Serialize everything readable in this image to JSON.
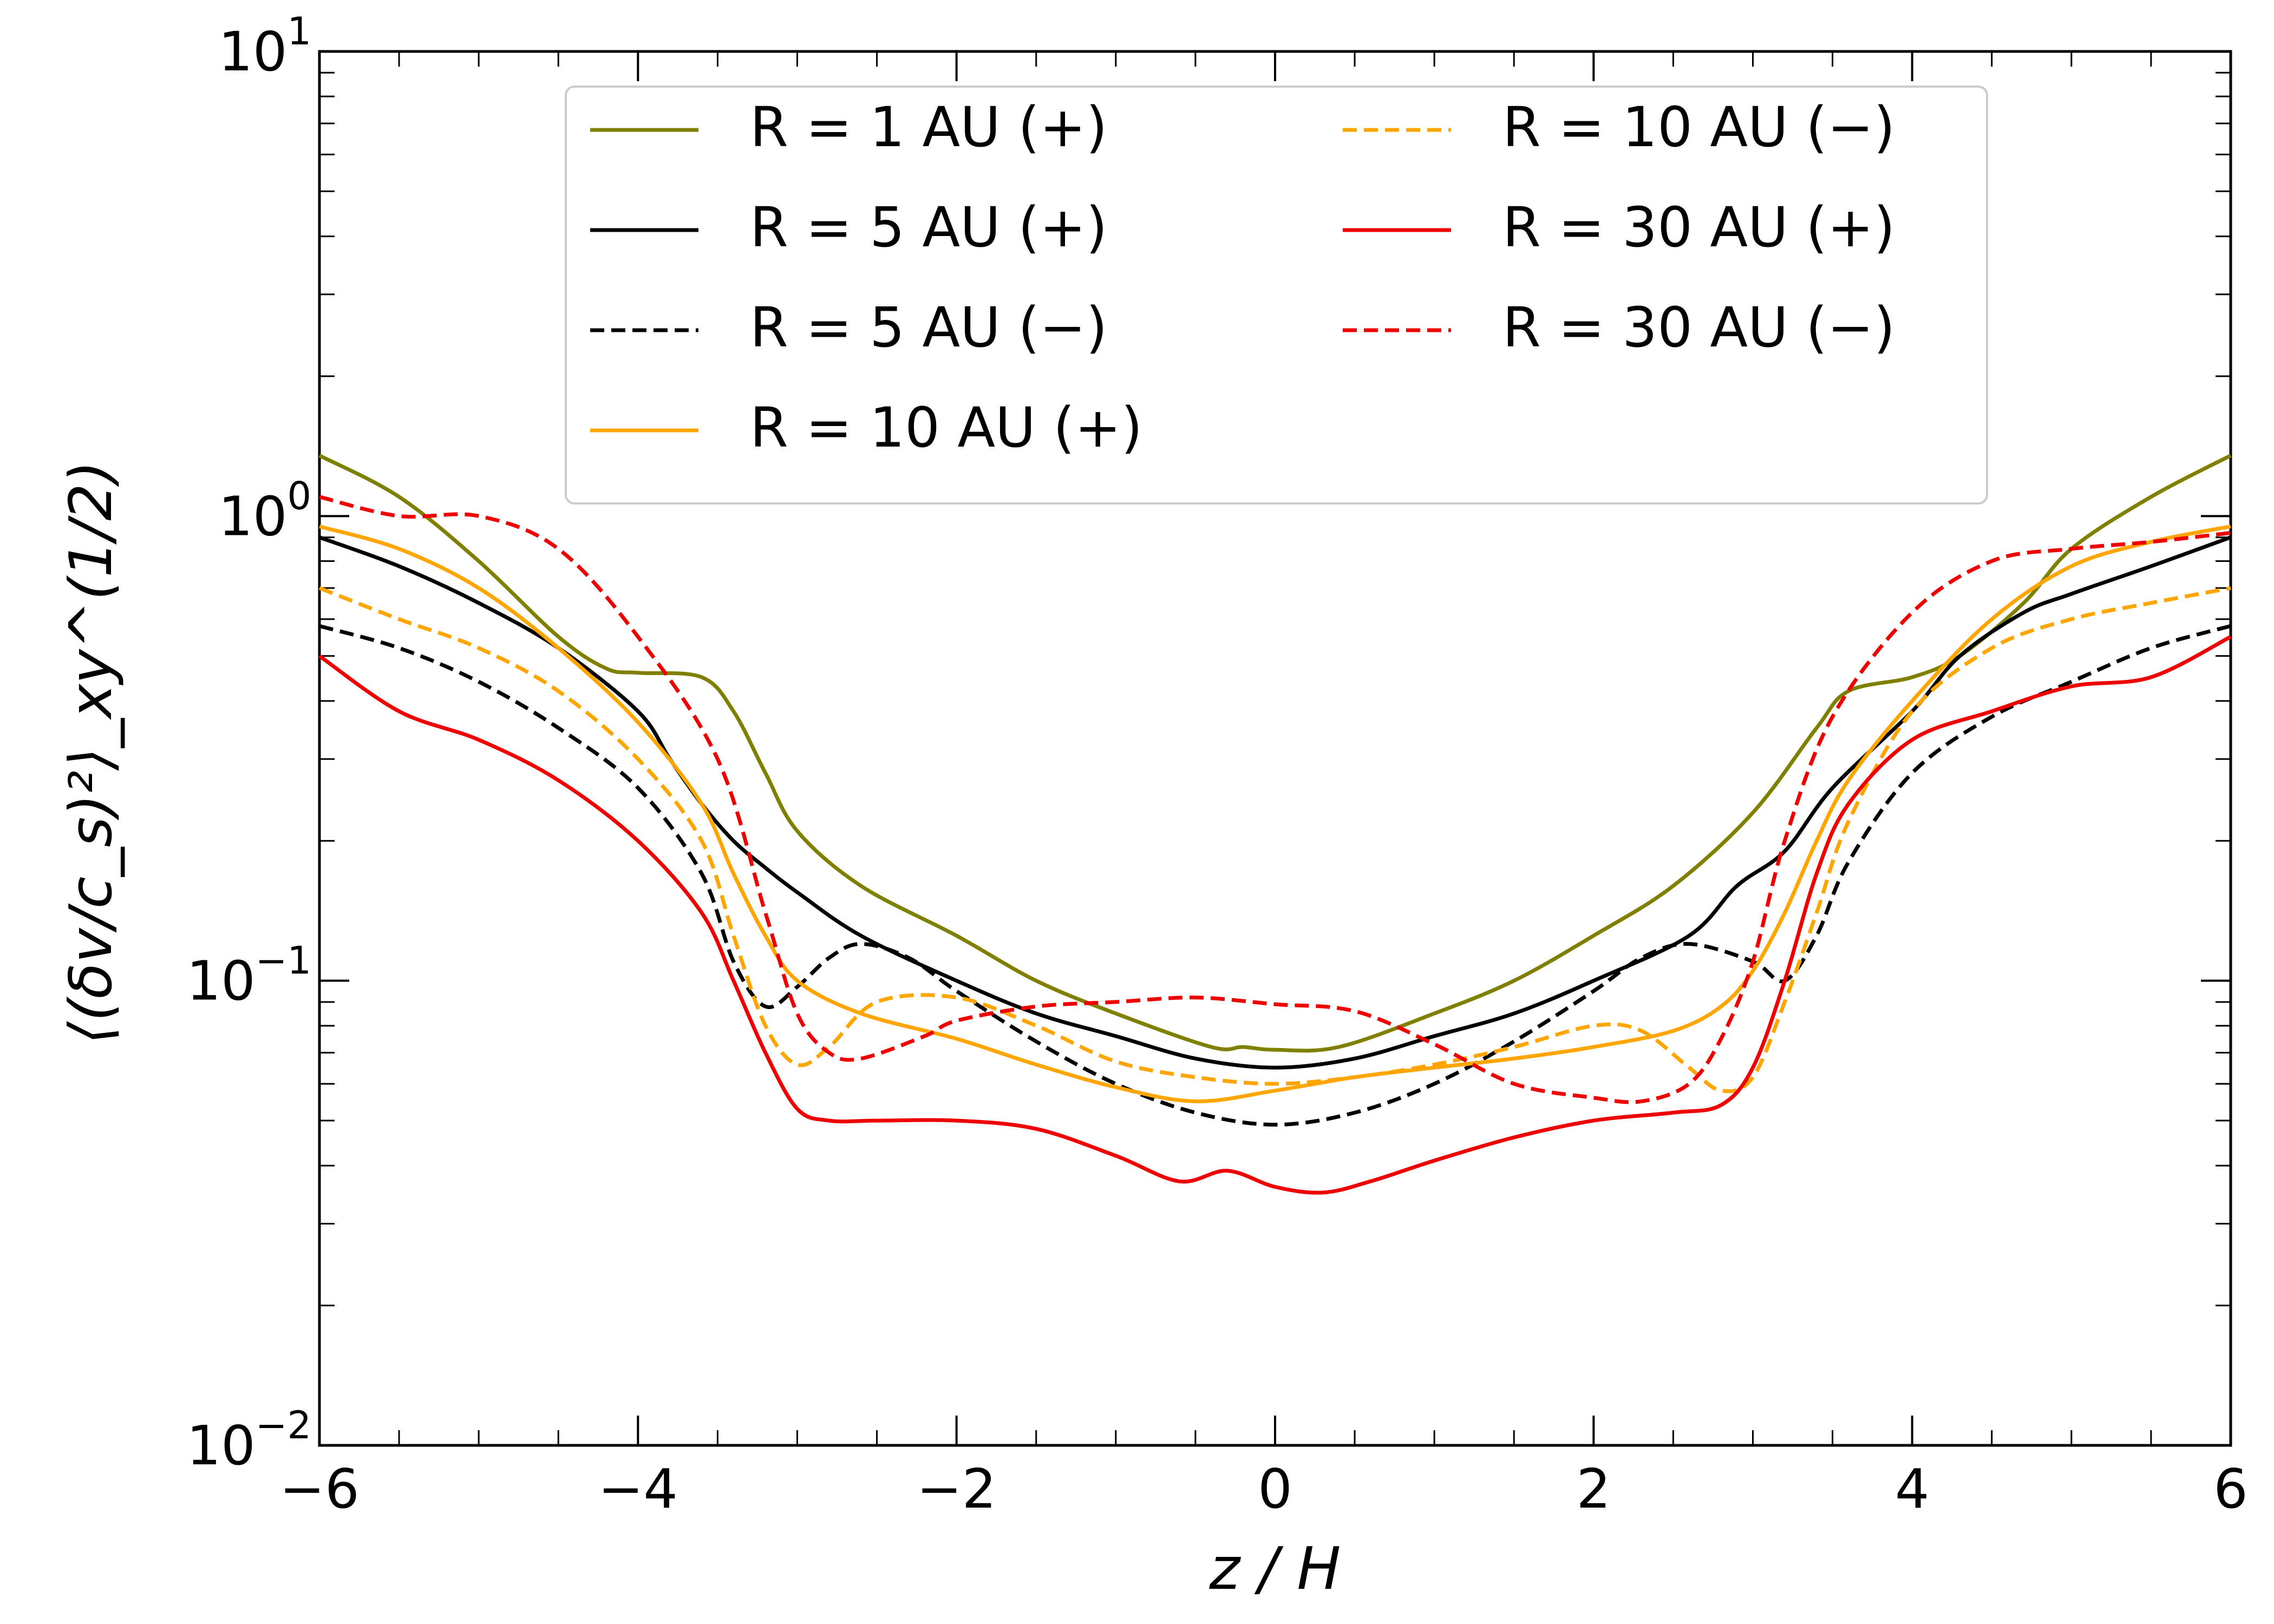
{
  "chart_data": {
    "type": "line",
    "title": "",
    "xlabel": "z / H",
    "ylabel": "⟨(δv/c_s)²⟩_xy^(1/2)",
    "xlim": [
      -6,
      6
    ],
    "ylim": [
      0.01,
      10
    ],
    "yscale": "log",
    "xticks": [
      -6,
      -4,
      -2,
      0,
      2,
      4,
      6
    ],
    "xtick_labels": [
      "−6",
      "−4",
      "−2",
      "0",
      "2",
      "4",
      "6"
    ],
    "ytick_labels": [
      {
        "base": "10",
        "exp": "−2"
      },
      {
        "base": "10",
        "exp": "−1"
      },
      {
        "base": "10",
        "exp": "0"
      },
      {
        "base": "10",
        "exp": "1"
      }
    ],
    "grid": false,
    "legend_position": "upper-center",
    "series": [
      {
        "name": "R = 1 AU (+)",
        "color": "#808000",
        "dash": "solid",
        "x": [
          -6,
          -5.5,
          -5,
          -4.5,
          -4.2,
          -4,
          -3.6,
          -3.4,
          -3.2,
          -3,
          -2.6,
          -2,
          -1.5,
          -1,
          -0.4,
          -0.2,
          0,
          0.4,
          1,
          1.5,
          2,
          2.5,
          3,
          3.4,
          3.6,
          4,
          4.3,
          4.7,
          5,
          5.5,
          6
        ],
        "y": [
          1.35,
          1.1,
          0.8,
          0.55,
          0.47,
          0.46,
          0.45,
          0.38,
          0.28,
          0.21,
          0.16,
          0.125,
          0.1,
          0.085,
          0.072,
          0.072,
          0.071,
          0.072,
          0.085,
          0.1,
          0.125,
          0.16,
          0.23,
          0.35,
          0.42,
          0.45,
          0.5,
          0.65,
          0.85,
          1.1,
          1.35
        ]
      },
      {
        "name": "R = 5 AU (+)",
        "color": "#000000",
        "dash": "solid",
        "x": [
          -6,
          -5.5,
          -5,
          -4.5,
          -4,
          -3.8,
          -3.6,
          -3.4,
          -3.2,
          -3,
          -2.6,
          -2,
          -1.5,
          -1,
          -0.5,
          0,
          0.5,
          1,
          1.5,
          2,
          2.6,
          2.9,
          3.2,
          3.5,
          4,
          4.3,
          4.7,
          5,
          5.5,
          6
        ],
        "y": [
          0.9,
          0.78,
          0.65,
          0.52,
          0.38,
          0.3,
          0.24,
          0.2,
          0.175,
          0.155,
          0.125,
          0.1,
          0.085,
          0.076,
          0.068,
          0.065,
          0.068,
          0.076,
          0.085,
          0.1,
          0.125,
          0.16,
          0.19,
          0.26,
          0.38,
          0.5,
          0.62,
          0.68,
          0.78,
          0.9
        ]
      },
      {
        "name": "R = 5 AU (−)",
        "color": "#000000",
        "dash": "dashed",
        "x": [
          -6,
          -5.5,
          -5,
          -4.5,
          -4,
          -3.6,
          -3.4,
          -3.2,
          -3,
          -2.8,
          -2.6,
          -2.3,
          -2,
          -1.5,
          -1,
          -0.5,
          0,
          0.5,
          1,
          1.5,
          2,
          2.3,
          2.6,
          3,
          3.2,
          3.4,
          3.6,
          4,
          4.5,
          5,
          5.5,
          6
        ],
        "y": [
          0.58,
          0.52,
          0.44,
          0.35,
          0.26,
          0.17,
          0.11,
          0.088,
          0.097,
          0.112,
          0.12,
          0.112,
          0.095,
          0.074,
          0.06,
          0.052,
          0.049,
          0.052,
          0.06,
          0.074,
          0.095,
          0.112,
          0.12,
          0.11,
          0.1,
          0.125,
          0.18,
          0.28,
          0.37,
          0.44,
          0.52,
          0.58
        ]
      },
      {
        "name": "R = 10 AU (+)",
        "color": "#FFA500",
        "dash": "solid",
        "x": [
          -6,
          -5.5,
          -5,
          -4.5,
          -4,
          -3.6,
          -3.4,
          -3.2,
          -3,
          -2.6,
          -2,
          -1.5,
          -1,
          -0.5,
          0,
          0.5,
          1,
          1.5,
          2,
          2.5,
          2.8,
          3,
          3.2,
          3.4,
          3.6,
          4,
          4.5,
          5,
          5.5,
          6
        ],
        "y": [
          0.95,
          0.85,
          0.7,
          0.52,
          0.36,
          0.24,
          0.17,
          0.125,
          0.1,
          0.085,
          0.075,
          0.066,
          0.059,
          0.055,
          0.058,
          0.062,
          0.065,
          0.068,
          0.072,
          0.078,
          0.088,
          0.105,
          0.14,
          0.2,
          0.27,
          0.4,
          0.6,
          0.78,
          0.88,
          0.95
        ]
      },
      {
        "name": "R = 10 AU (−)",
        "color": "#FFA500",
        "dash": "dashed",
        "x": [
          -6,
          -5.5,
          -5,
          -4.5,
          -4,
          -3.6,
          -3.4,
          -3.2,
          -3,
          -2.8,
          -2.5,
          -2,
          -1.5,
          -1,
          -0.5,
          0,
          0.5,
          1,
          1.5,
          2,
          2.3,
          2.6,
          2.8,
          3,
          3.2,
          3.4,
          3.6,
          4,
          4.5,
          5,
          5.5,
          6
        ],
        "y": [
          0.7,
          0.6,
          0.52,
          0.42,
          0.3,
          0.2,
          0.125,
          0.08,
          0.066,
          0.072,
          0.09,
          0.092,
          0.08,
          0.067,
          0.062,
          0.06,
          0.062,
          0.066,
          0.072,
          0.08,
          0.078,
          0.065,
          0.058,
          0.062,
          0.09,
          0.14,
          0.22,
          0.38,
          0.52,
          0.6,
          0.65,
          0.7
        ]
      },
      {
        "name": "R = 30 AU (+)",
        "color": "#EE0000",
        "dash": "solid",
        "x": [
          -6,
          -5.5,
          -5,
          -4.5,
          -4,
          -3.6,
          -3.4,
          -3.2,
          -3,
          -2.8,
          -2.5,
          -2,
          -1.5,
          -1,
          -0.6,
          -0.3,
          0,
          0.3,
          0.6,
          1,
          1.5,
          2,
          2.5,
          2.8,
          3,
          3.2,
          3.4,
          3.6,
          4,
          4.5,
          5,
          5.5,
          6
        ],
        "y": [
          0.5,
          0.38,
          0.33,
          0.27,
          0.2,
          0.14,
          0.1,
          0.07,
          0.053,
          0.05,
          0.05,
          0.05,
          0.048,
          0.042,
          0.037,
          0.039,
          0.036,
          0.035,
          0.037,
          0.041,
          0.046,
          0.05,
          0.052,
          0.054,
          0.065,
          0.1,
          0.17,
          0.24,
          0.33,
          0.38,
          0.43,
          0.45,
          0.55
        ]
      },
      {
        "name": "R = 30 AU (−)",
        "color": "#EE0000",
        "dash": "dashed",
        "x": [
          -6,
          -5.5,
          -5,
          -4.5,
          -4,
          -3.5,
          -3.2,
          -3,
          -2.8,
          -2.6,
          -2.2,
          -2,
          -1.5,
          -1,
          -0.5,
          0,
          0.5,
          1,
          1.5,
          2,
          2.3,
          2.6,
          2.8,
          3,
          3.2,
          3.5,
          4,
          4.5,
          5,
          5.5,
          6
        ],
        "y": [
          1.1,
          1.0,
          1.0,
          0.85,
          0.55,
          0.3,
          0.14,
          0.085,
          0.07,
          0.068,
          0.076,
          0.082,
          0.088,
          0.09,
          0.092,
          0.089,
          0.086,
          0.073,
          0.06,
          0.056,
          0.055,
          0.06,
          0.075,
          0.11,
          0.2,
          0.37,
          0.62,
          0.8,
          0.85,
          0.88,
          0.92
        ]
      }
    ]
  }
}
